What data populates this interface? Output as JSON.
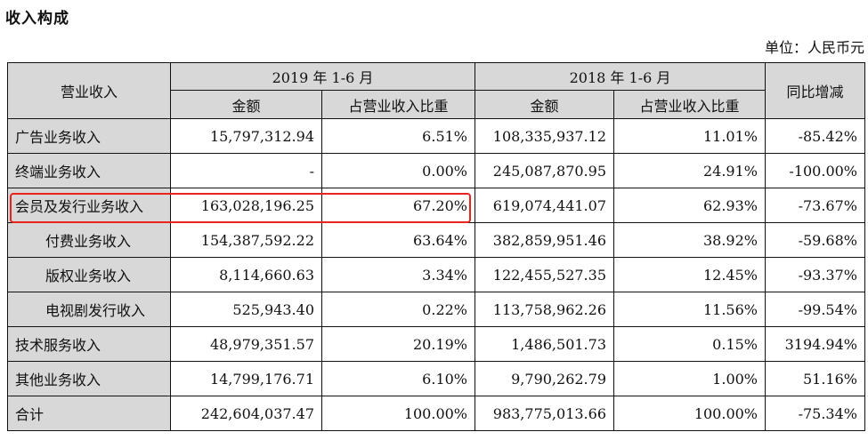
{
  "title": "收入构成",
  "unit": "单位：人民币元",
  "headers": {
    "category": "营业收入",
    "period1": "2019 年 1-6 月",
    "period2": "2018 年 1-6 月",
    "amount": "金额",
    "ratio": "占营业收入比重",
    "yoy": "同比增减"
  },
  "rows": [
    {
      "name": "广告业务收入",
      "a1": "15,797,312.94",
      "r1": "6.51%",
      "a2": "108,335,937.12",
      "r2": "11.01%",
      "yoy": "-85.42%"
    },
    {
      "name": "终端业务收入",
      "a1": "-",
      "r1": "0.00%",
      "a2": "245,087,870.95",
      "r2": "24.91%",
      "yoy": "-100.00%"
    },
    {
      "name": "会员及发行业务收入",
      "a1": "163,028,196.25",
      "r1": "67.20%",
      "a2": "619,074,441.07",
      "r2": "62.93%",
      "yoy": "-73.67%"
    },
    {
      "name": "付费业务收入",
      "a1": "154,387,592.22",
      "r1": "63.64%",
      "a2": "382,859,951.46",
      "r2": "38.92%",
      "yoy": "-59.68%"
    },
    {
      "name": "版权业务收入",
      "a1": "8,114,660.63",
      "r1": "3.34%",
      "a2": "122,455,527.35",
      "r2": "12.45%",
      "yoy": "-93.37%"
    },
    {
      "name": "电视剧发行收入",
      "a1": "525,943.40",
      "r1": "0.22%",
      "a2": "113,758,962.26",
      "r2": "11.56%",
      "yoy": "-99.54%"
    },
    {
      "name": "技术服务收入",
      "a1": "48,979,351.57",
      "r1": "20.19%",
      "a2": "1,486,501.73",
      "r2": "0.15%",
      "yoy": "3194.94%"
    },
    {
      "name": "其他业务收入",
      "a1": "14,799,176.71",
      "r1": "6.10%",
      "a2": "9,790,262.79",
      "r2": "1.00%",
      "yoy": "51.16%"
    },
    {
      "name": "合计",
      "a1": "242,604,037.47",
      "r1": "100.00%",
      "a2": "983,775,013.66",
      "r2": "100.00%",
      "yoy": "-75.34%"
    }
  ],
  "highlight_color": "#e8221c"
}
